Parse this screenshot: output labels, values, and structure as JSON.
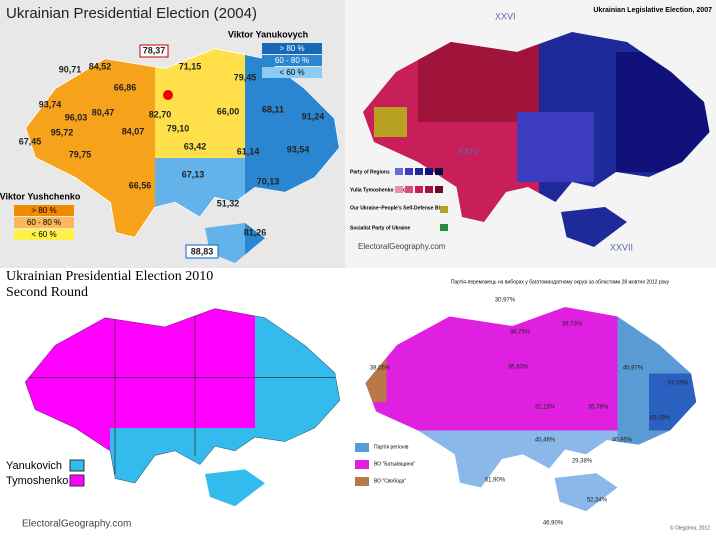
{
  "panels": [
    {
      "title": "Ukrainian Presidential Election (2004)",
      "legends": [
        {
          "title": "Viktor Yanukovych",
          "items": [
            "> 80 %",
            "60 - 80 %",
            "< 60 %"
          ]
        },
        {
          "title": "Viktor Yushchenko",
          "items": [
            "> 80 %",
            "60 - 80 %",
            "< 60 %"
          ]
        }
      ],
      "labels": [
        "90,71",
        "84,52",
        "66,86",
        "78,37",
        "71,15",
        "79,45",
        "93,74",
        "96,03",
        "80,47",
        "82,70",
        "66,00",
        "68,11",
        "91,24",
        "95,72",
        "84,07",
        "79,10",
        "67,45",
        "79,75",
        "63,42",
        "61,14",
        "93,54",
        "66,56",
        "67,13",
        "70,13",
        "51,32",
        "81,26",
        "88,83"
      ]
    },
    {
      "title": "Ukrainian Legislative Election, 2007",
      "districts": [
        "XXVI",
        "XXIV",
        "XXVII"
      ],
      "legend": [
        "Party of Regions",
        "Yulia Tymoshenko Bloc",
        "Our Ukraine–People's Self-Defense Bloc",
        "Socialist Party of Ukraine"
      ],
      "credit": "ElectoralGeography.com"
    },
    {
      "title": [
        "Ukrainian Presidential Election 2010",
        "Second Round"
      ],
      "legend": [
        "Yanukovich",
        "Tymoshenko"
      ],
      "credit": "ElectoralGeography.com"
    },
    {
      "title": "Партія-переможець на виборах у багатомандатному окрузі за областями 28 жовтня 2012 року",
      "legend": [
        "Партія регіонів",
        "ВО \"Батьківщина\"",
        "ВО \"Свобода\""
      ],
      "labels": [
        "38,05%",
        "30,97%",
        "39,73%",
        "36,80%",
        "40,97%",
        "57,05%",
        "65,09%",
        "40,95%",
        "40,46%",
        "61,90%",
        "52,34%",
        "46,90%",
        "29,38%",
        "35,78%",
        "32,15%",
        "38,75%"
      ],
      "credit": "© Olegzima, 2012"
    }
  ]
}
